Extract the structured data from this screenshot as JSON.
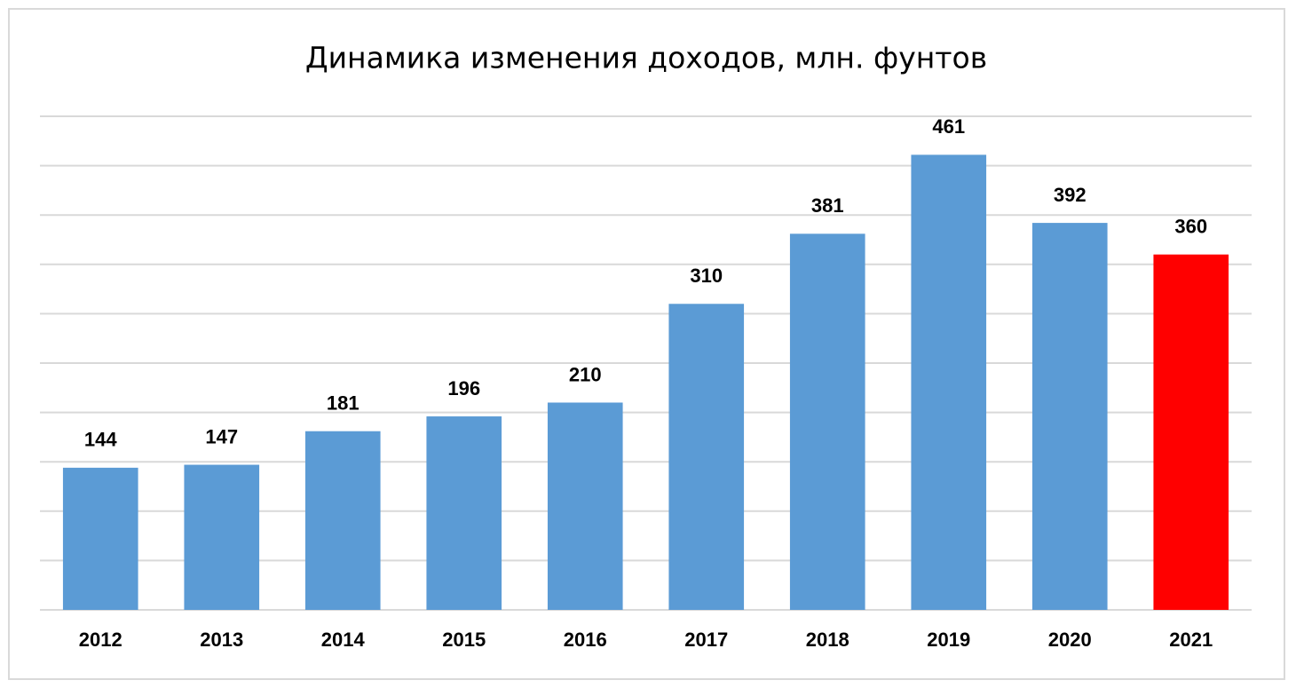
{
  "chart_data": {
    "type": "bar",
    "title": "Динамика изменения доходов, млн. фунтов",
    "categories": [
      "2012",
      "2013",
      "2014",
      "2015",
      "2016",
      "2017",
      "2018",
      "2019",
      "2020",
      "2021"
    ],
    "values": [
      144,
      147,
      181,
      196,
      210,
      310,
      381,
      461,
      392,
      360
    ],
    "colors": [
      "#5b9bd5",
      "#5b9bd5",
      "#5b9bd5",
      "#5b9bd5",
      "#5b9bd5",
      "#5b9bd5",
      "#5b9bd5",
      "#5b9bd5",
      "#5b9bd5",
      "#ff0000"
    ],
    "ylim": [
      0,
      500
    ],
    "yticks": [
      0,
      50,
      100,
      150,
      200,
      250,
      300,
      350,
      400,
      450,
      500
    ],
    "grid": true
  }
}
